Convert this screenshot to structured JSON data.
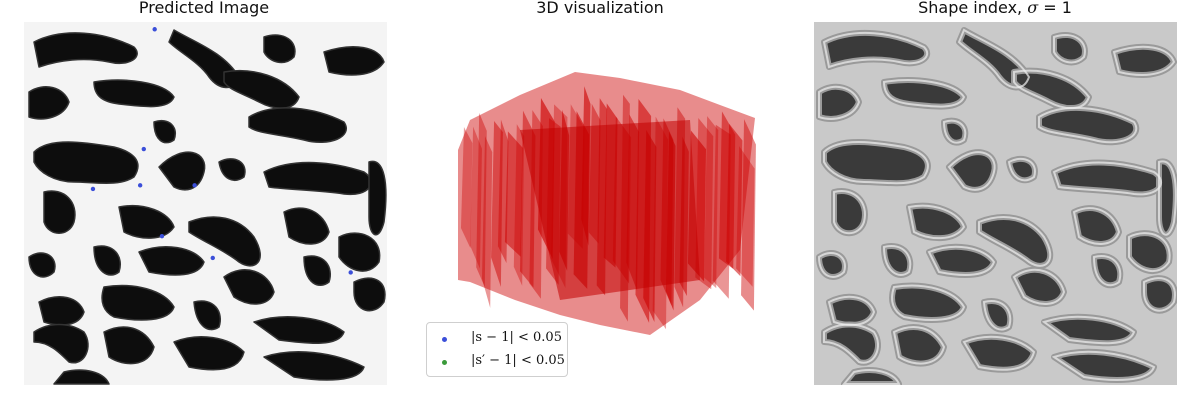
{
  "panels": {
    "left": {
      "title": "Predicted Image",
      "overlay_points": [
        [
          0.36,
          0.02
        ],
        [
          0.33,
          0.35
        ],
        [
          0.19,
          0.46
        ],
        [
          0.32,
          0.45
        ],
        [
          0.47,
          0.45
        ],
        [
          0.38,
          0.59
        ],
        [
          0.52,
          0.65
        ],
        [
          0.9,
          0.69
        ]
      ],
      "point_color": "#3b4fd9"
    },
    "middle": {
      "title": "3D visualization",
      "surface_color": "#cc0000"
    },
    "right": {
      "title_text": "Shape index, ",
      "title_symbol": "σ",
      "title_tail": " = 1"
    }
  },
  "legend": {
    "entries": [
      {
        "label": "|s − 1| < 0.05",
        "color": "#3b4fd9"
      },
      {
        "label": "|s′ − 1| < 0.05",
        "color": "#3a9a3a"
      }
    ]
  },
  "chart_data": [
    {
      "type": "heatmap",
      "title": "Predicted Image",
      "colormap": "gray",
      "series": [
        {
          "name": "|s − 1| < 0.05",
          "type": "scatter",
          "points_normalized": [
            [
              0.36,
              0.02
            ],
            [
              0.33,
              0.35
            ],
            [
              0.19,
              0.46
            ],
            [
              0.32,
              0.45
            ],
            [
              0.47,
              0.45
            ],
            [
              0.38,
              0.59
            ],
            [
              0.52,
              0.65
            ],
            [
              0.9,
              0.69
            ]
          ]
        }
      ],
      "axes": "off"
    },
    {
      "type": "surface",
      "title": "3D visualization",
      "axes": "off"
    },
    {
      "type": "heatmap",
      "title": "Shape index, σ = 1",
      "colormap": "gray",
      "axes": "off"
    }
  ],
  "colors": {
    "background": "#ffffff",
    "blob_dark": "#0d0d0d",
    "blob_light": "#f4f4f4"
  }
}
